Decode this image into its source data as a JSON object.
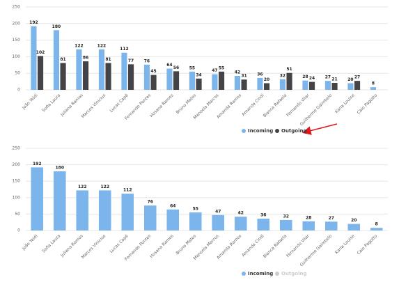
{
  "chart_data": [
    {
      "type": "bar",
      "categories": [
        "João Yeidi",
        "Sofia Laura",
        "Juliana Ramos",
        "Marcos Vinicius",
        "Lucas Capê",
        "Fernando Pontes",
        "Hosana Ramos",
        "Bruno Matos",
        "Manoela Marcos",
        "Amanda Ramos",
        "Amanda Cindi",
        "Bianca Rafaela",
        "Fernando Vilar",
        "Guilherme Gaimbelo",
        "Karla Louise",
        "Caio Pagotto"
      ],
      "series": [
        {
          "name": "Incoming",
          "color": "#7cb5ec",
          "values": [
            192,
            180,
            122,
            122,
            112,
            76,
            64,
            55,
            47,
            42,
            36,
            32,
            28,
            27,
            20,
            8
          ]
        },
        {
          "name": "Outgoing",
          "color": "#434348",
          "values": [
            102,
            81,
            86,
            81,
            77,
            45,
            56,
            34,
            55,
            31,
            20,
            51,
            24,
            21,
            27,
            null
          ]
        }
      ],
      "ylim": [
        0,
        250
      ],
      "yticks": [
        0,
        50,
        100,
        150,
        200,
        250
      ],
      "grid": true,
      "legend": "bottom"
    },
    {
      "type": "bar",
      "categories": [
        "João Yeidi",
        "Sofia Laura",
        "Juliana Ramos",
        "Marcos Vinicius",
        "Lucas Capê",
        "Fernando Pontes",
        "Hosana Ramos",
        "Bruno Matos",
        "Manoela Marcos",
        "Amanda Ramos",
        "Amanda Cindi",
        "Bianca Rafaela",
        "Fernando Vilar",
        "Guilherme Gaimbelo",
        "Karla Louise",
        "Caio Pagotto"
      ],
      "series": [
        {
          "name": "Incoming",
          "color": "#7cb5ec",
          "values": [
            192,
            180,
            122,
            122,
            112,
            76,
            64,
            55,
            47,
            42,
            36,
            32,
            28,
            27,
            20,
            8
          ]
        },
        {
          "name": "Outgoing",
          "color": "#cccccc",
          "visible": false
        }
      ],
      "ylim": [
        0,
        250
      ],
      "yticks": [
        0,
        50,
        100,
        150,
        200,
        250
      ],
      "grid": true,
      "legend": "bottom"
    }
  ]
}
